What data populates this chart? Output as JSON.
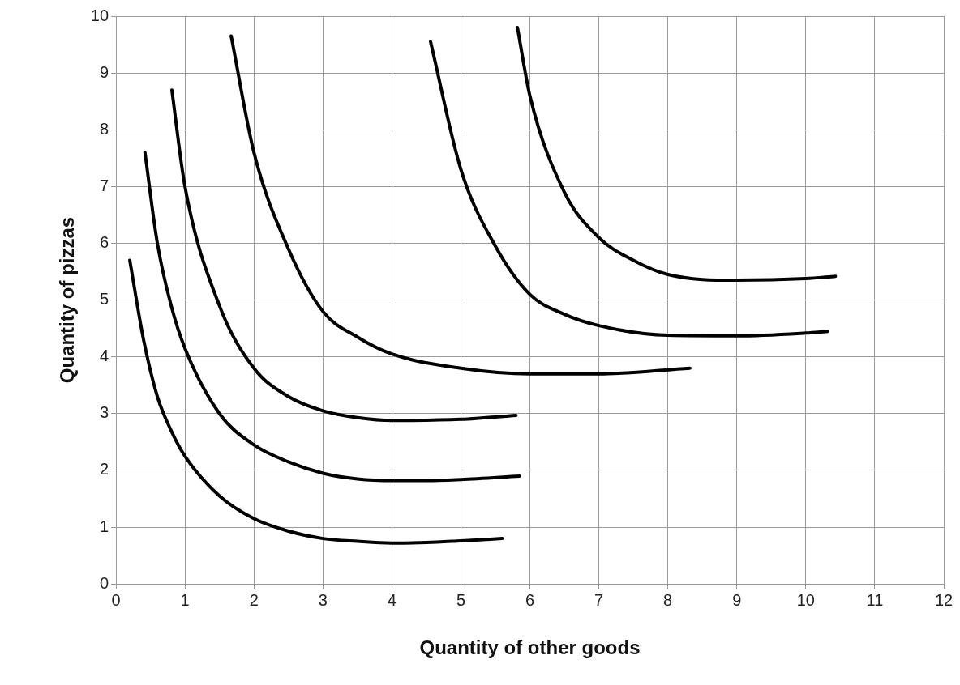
{
  "chart_data": {
    "type": "line",
    "xlabel": "Quantity of other goods",
    "ylabel": "Quantity of pizzas",
    "xlim": [
      0,
      12
    ],
    "xticks": [
      0,
      1,
      2,
      3,
      4,
      5,
      6,
      7,
      8,
      9,
      10,
      11,
      12
    ],
    "ylim": [
      0,
      10
    ],
    "yticks": [
      0,
      1,
      2,
      3,
      4,
      5,
      6,
      7,
      8,
      9,
      10
    ],
    "grid": true,
    "legend": false,
    "marker": "none",
    "line_style": "solid",
    "series": [
      {
        "color": "#000000",
        "x": [
          0.2,
          0.4,
          0.6,
          0.8,
          1,
          1.5,
          2,
          2.5,
          3,
          3.5,
          4,
          4.5,
          5,
          5.6
        ],
        "values": [
          5.7,
          4.3,
          3.3,
          2.7,
          2.25,
          1.55,
          1.15,
          0.93,
          0.8,
          0.75,
          0.72,
          0.73,
          0.76,
          0.8
        ]
      },
      {
        "color": "#000000",
        "x": [
          0.42,
          0.6,
          0.8,
          1,
          1.5,
          2,
          2.5,
          3,
          3.5,
          4,
          4.5,
          5,
          5.85
        ],
        "values": [
          7.6,
          6.0,
          4.9,
          4.15,
          3.0,
          2.45,
          2.15,
          1.95,
          1.85,
          1.82,
          1.82,
          1.84,
          1.9
        ]
      },
      {
        "color": "#000000",
        "x": [
          0.81,
          1,
          1.5,
          2,
          2.5,
          3,
          3.5,
          4,
          5,
          5.8
        ],
        "values": [
          8.7,
          7.0,
          4.9,
          3.8,
          3.3,
          3.05,
          2.93,
          2.88,
          2.9,
          2.97
        ]
      },
      {
        "color": "#000000",
        "x": [
          1.67,
          2,
          2.5,
          3,
          3.5,
          4,
          5,
          6,
          7,
          8.32
        ],
        "values": [
          9.65,
          7.6,
          5.9,
          4.8,
          4.35,
          4.05,
          3.8,
          3.7,
          3.7,
          3.8
        ]
      },
      {
        "color": "#000000",
        "x": [
          4.56,
          5,
          5.5,
          6,
          6.5,
          7,
          8,
          9,
          10,
          10.32
        ],
        "values": [
          9.55,
          7.3,
          5.95,
          5.1,
          4.75,
          4.55,
          4.38,
          4.37,
          4.42,
          4.45
        ]
      },
      {
        "color": "#000000",
        "x": [
          5.82,
          6,
          6.5,
          7,
          7.5,
          8,
          9,
          10,
          10.43
        ],
        "values": [
          9.8,
          8.6,
          6.9,
          6.1,
          5.7,
          5.45,
          5.35,
          5.38,
          5.42
        ]
      }
    ]
  }
}
